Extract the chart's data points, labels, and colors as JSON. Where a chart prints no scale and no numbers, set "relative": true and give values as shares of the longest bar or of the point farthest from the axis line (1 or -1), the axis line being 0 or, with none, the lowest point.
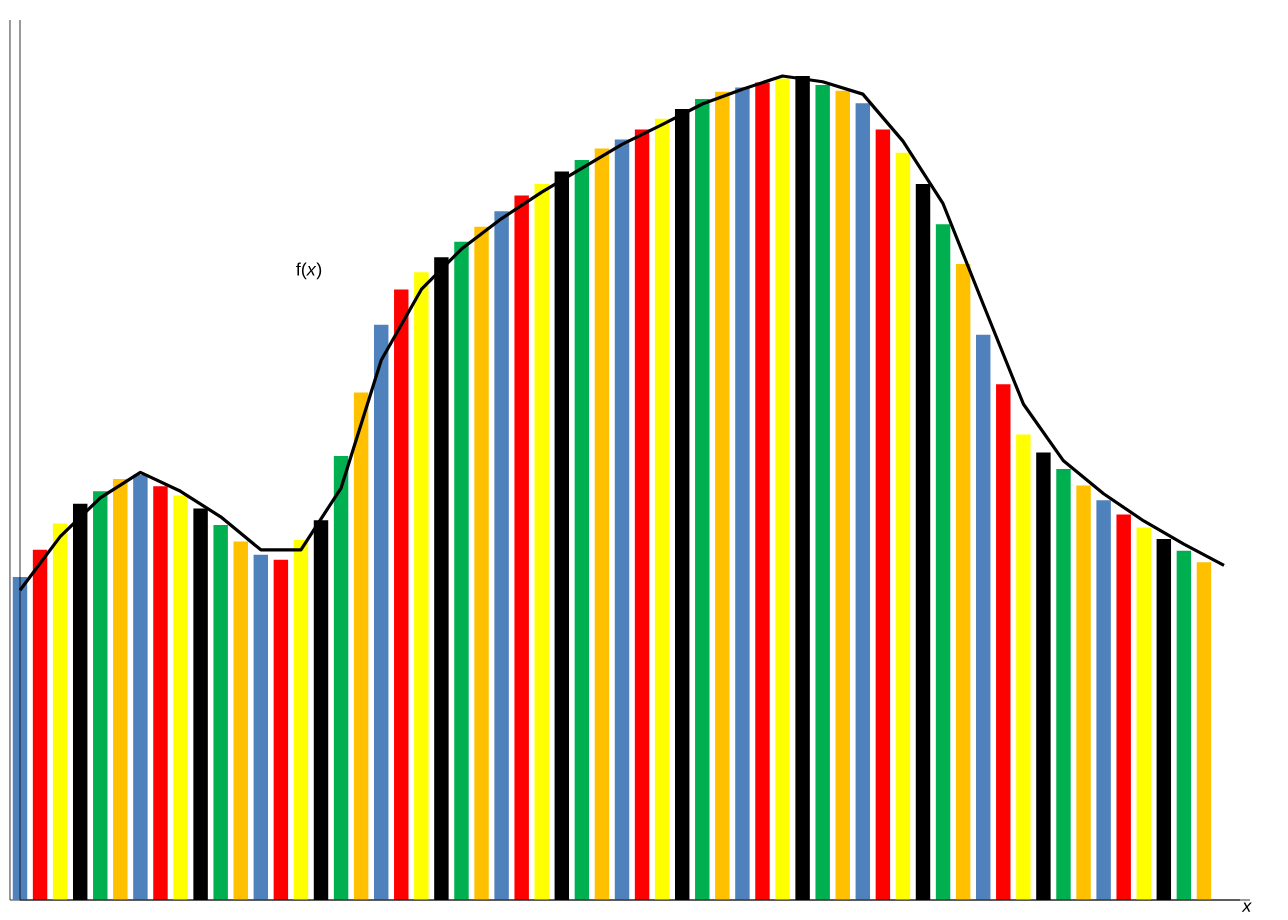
{
  "chart_data": [
    {
      "type": "bar",
      "relative": true,
      "xlabel": "*x*",
      "categories": [
        null,
        null,
        null,
        null,
        null,
        null,
        null,
        null,
        null,
        null,
        null,
        null,
        null,
        null,
        null,
        null,
        null,
        null,
        null,
        null,
        null,
        null,
        null,
        null,
        null,
        null,
        null,
        null,
        null,
        null,
        null,
        null,
        null,
        null,
        null,
        null,
        null,
        null,
        null,
        null,
        null,
        null,
        null,
        null,
        null,
        null,
        null,
        null,
        null,
        null,
        null,
        null,
        null,
        null,
        null,
        null,
        null,
        null,
        null,
        null
      ],
      "colors": [
        "#4f81bd",
        "#ff0000",
        "#ffff00",
        "#000000",
        "#00b050",
        "#ffc000",
        "#4f81bd",
        "#ff0000",
        "#ffff00",
        "#000000",
        "#00b050",
        "#ffc000",
        "#4f81bd",
        "#ff0000",
        "#ffff00",
        "#000000",
        "#00b050",
        "#ffc000",
        "#4f81bd",
        "#ff0000",
        "#ffff00",
        "#000000",
        "#00b050",
        "#ffc000",
        "#4f81bd",
        "#ff0000",
        "#ffff00",
        "#000000",
        "#00b050",
        "#ffc000",
        "#4f81bd",
        "#ff0000",
        "#ffff00",
        "#000000",
        "#00b050",
        "#ffc000",
        "#4f81bd",
        "#ff0000",
        "#ffff00",
        "#000000",
        "#00b050",
        "#ffc000",
        "#4f81bd",
        "#ff0000",
        "#ffff00",
        "#000000",
        "#00b050",
        "#ffc000",
        "#4f81bd",
        "#ff0000",
        "#ffff00",
        "#000000",
        "#00b050",
        "#ffc000",
        "#4f81bd",
        "#ff0000",
        "#ffff00",
        "#000000",
        "#00b050",
        "#ffc000"
      ],
      "values": [
        0.392,
        0.425,
        0.457,
        0.481,
        0.496,
        0.511,
        0.516,
        0.502,
        0.491,
        0.475,
        0.455,
        0.435,
        0.419,
        0.413,
        0.437,
        0.461,
        0.539,
        0.616,
        0.698,
        0.741,
        0.762,
        0.78,
        0.799,
        0.817,
        0.836,
        0.855,
        0.869,
        0.884,
        0.898,
        0.912,
        0.923,
        0.935,
        0.948,
        0.96,
        0.972,
        0.981,
        0.986,
        0.992,
        0.997,
        1.0,
        0.989,
        0.982,
        0.967,
        0.935,
        0.907,
        0.869,
        0.82,
        0.772,
        0.686,
        0.626,
        0.565,
        0.543,
        0.523,
        0.503,
        0.485,
        0.468,
        0.452,
        0.438,
        0.424,
        0.41
      ]
    },
    {
      "type": "line",
      "relative": true,
      "color": "#000000",
      "annotations": [
        "f(*x*)"
      ],
      "categories": [
        null,
        null,
        null,
        null,
        null,
        null,
        null,
        null,
        null,
        null,
        null,
        null,
        null,
        null,
        null,
        null,
        null,
        null,
        null,
        null,
        null,
        null,
        null,
        null,
        null,
        null,
        null,
        null,
        null,
        null,
        null
      ],
      "values": [
        0.376,
        0.441,
        0.488,
        0.519,
        0.496,
        0.465,
        0.425,
        0.425,
        0.5,
        0.655,
        0.741,
        0.79,
        0.827,
        0.859,
        0.888,
        0.917,
        0.941,
        0.966,
        0.984,
        1.0,
        0.993,
        0.978,
        0.921,
        0.845,
        0.723,
        0.602,
        0.533,
        0.493,
        0.46,
        0.432,
        0.406
      ]
    }
  ]
}
